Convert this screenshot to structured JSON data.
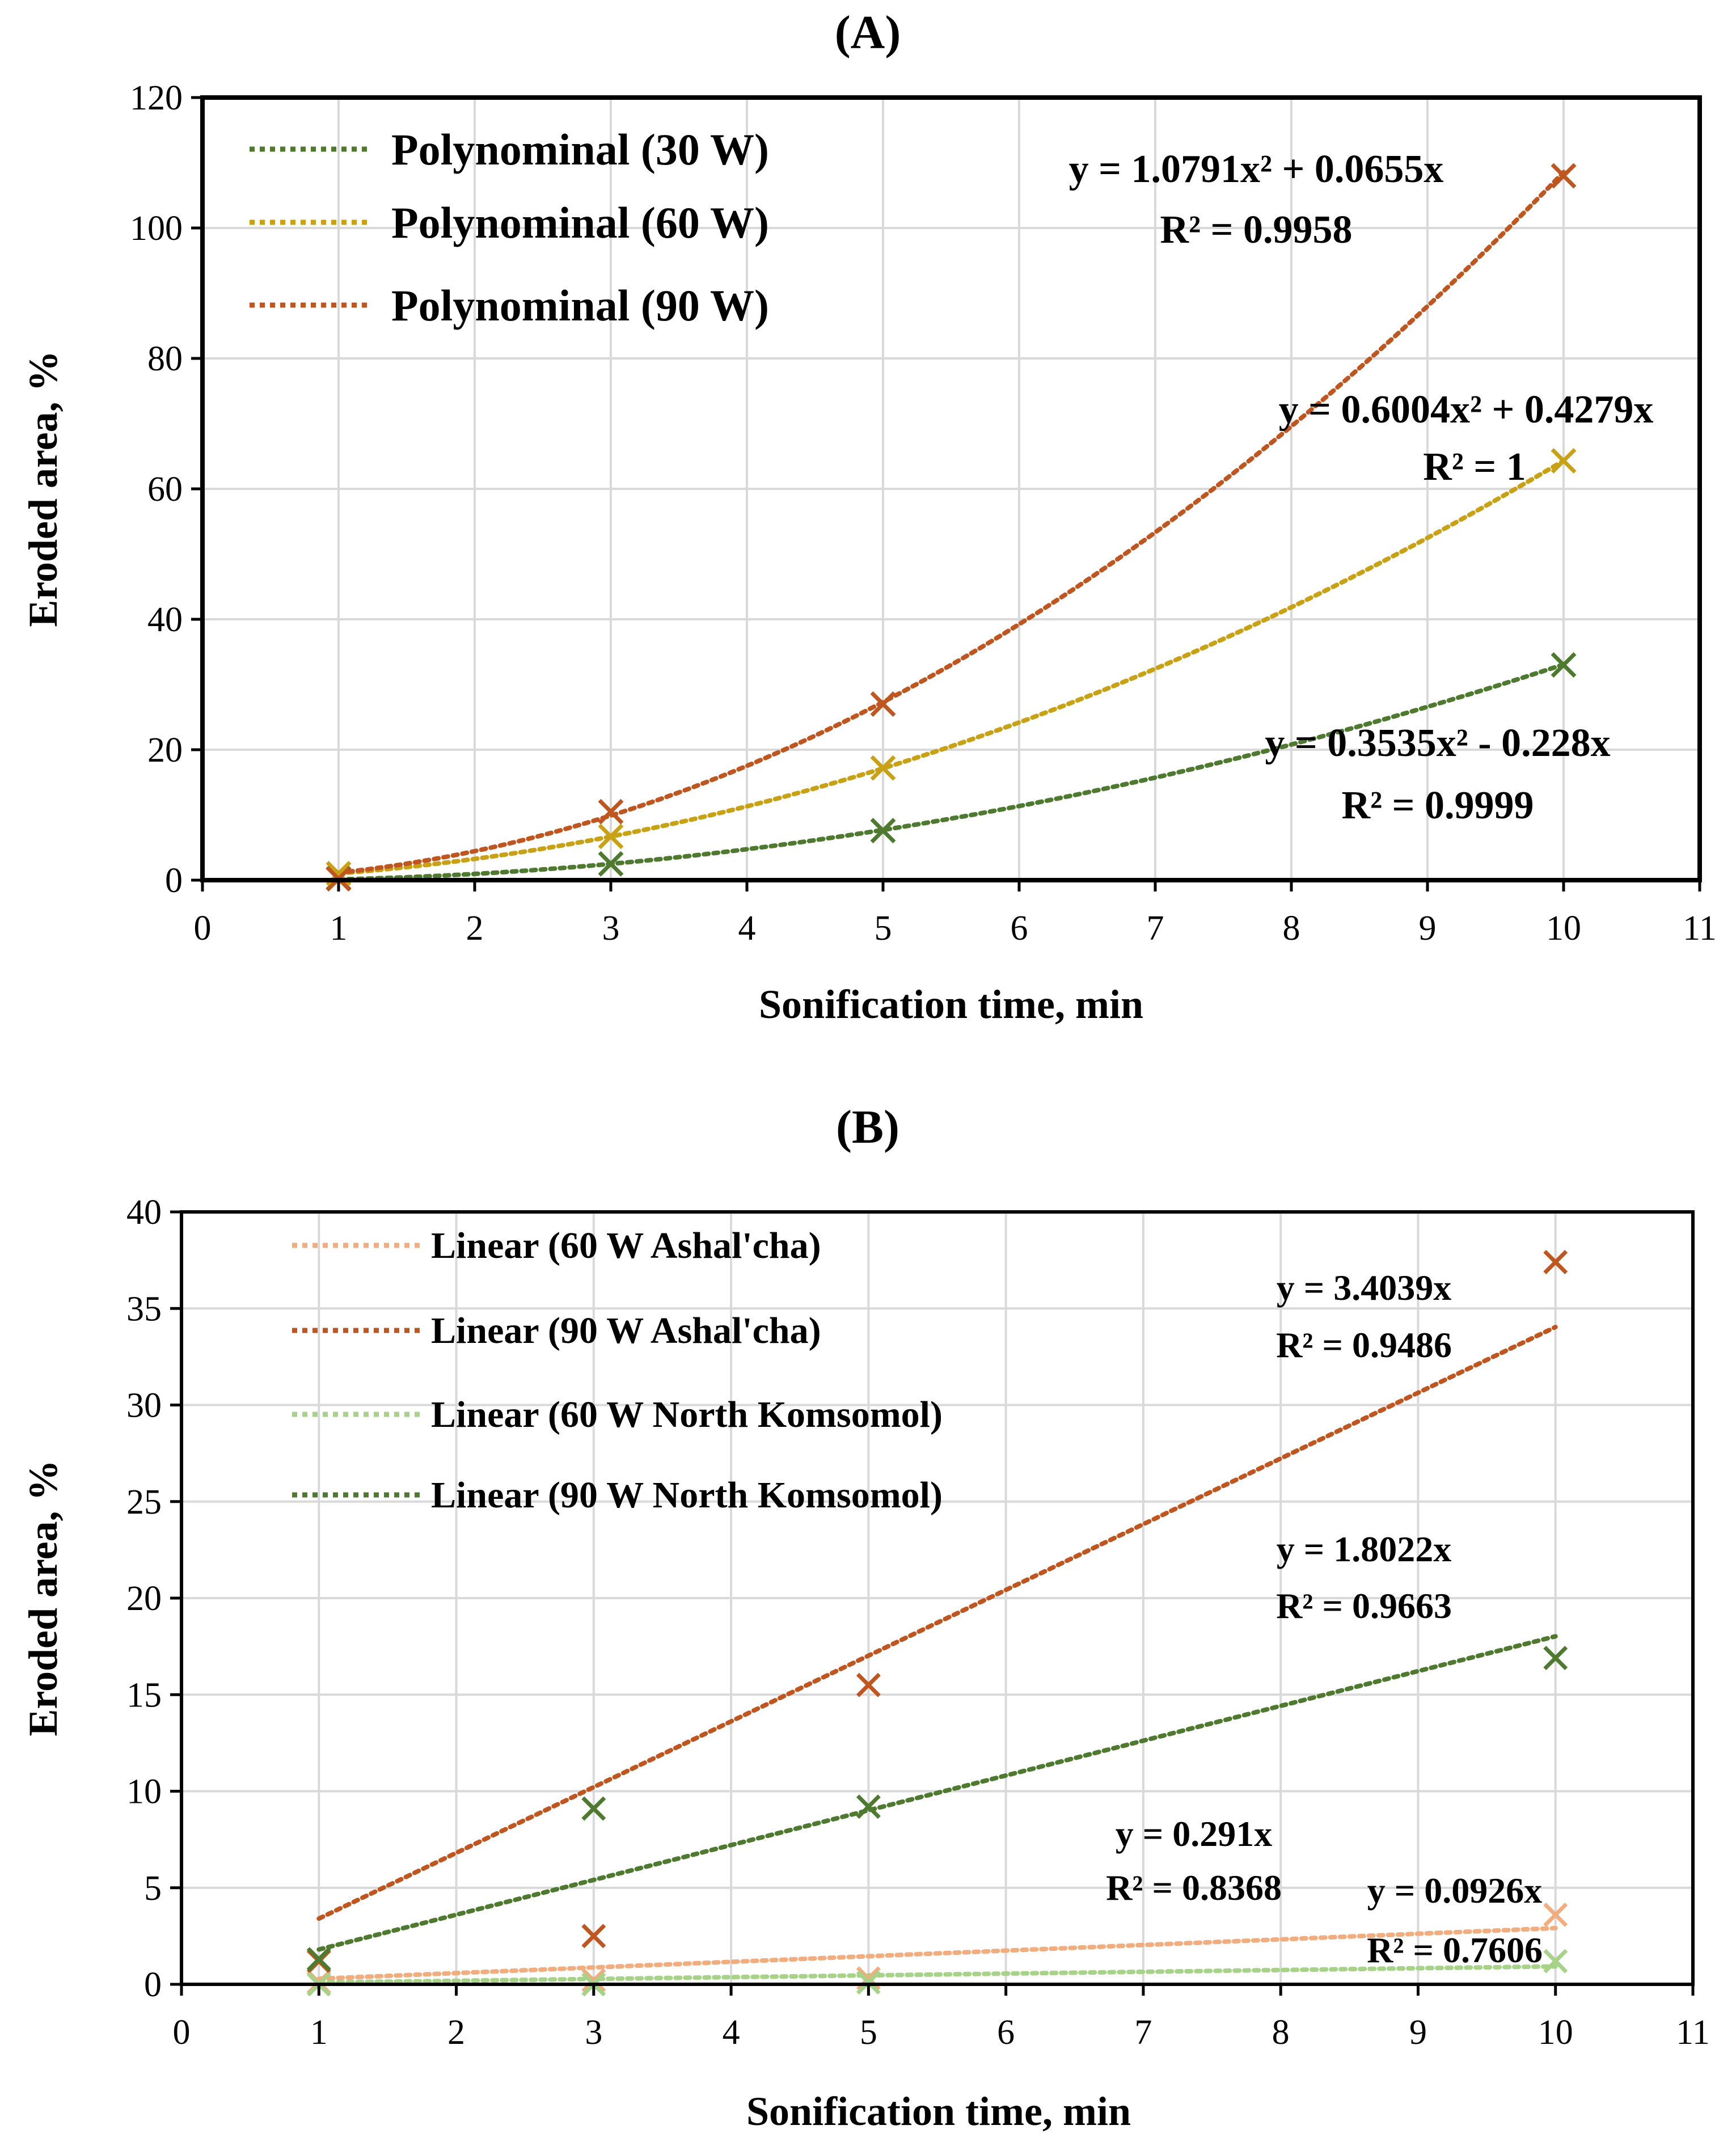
{
  "chart_data": [
    {
      "type": "scatter",
      "title": "(A)",
      "xlabel": "Sonification time, min",
      "ylabel": "Eroded area, %",
      "xlim": [
        0,
        11
      ],
      "ylim": [
        0,
        120
      ],
      "xticks": [
        "0",
        "1",
        "2",
        "3",
        "4",
        "5",
        "6",
        "7",
        "8",
        "9",
        "10",
        "11"
      ],
      "yticks": [
        "0",
        "20",
        "40",
        "60",
        "80",
        "100",
        "120"
      ],
      "grid": true,
      "legend_position": "top-left",
      "series": [
        {
          "name": "30 W",
          "legend": "Polynominal (30 W)",
          "color": "#4e7a2f",
          "x": [
            1,
            3,
            5,
            10
          ],
          "y": [
            0.3,
            2.5,
            7.6,
            33.0
          ],
          "fit": {
            "type": "poly2",
            "a": 0.3535,
            "b": -0.228
          },
          "equation": "y = 0.3535x² - 0.228x",
          "r2": "R² = 0.9999"
        },
        {
          "name": "60 W",
          "legend": "Polynominal (60 W)",
          "color": "#c9a114",
          "x": [
            1,
            3,
            5,
            10
          ],
          "y": [
            1.0,
            6.7,
            17.2,
            64.3
          ],
          "fit": {
            "type": "poly2",
            "a": 0.6004,
            "b": 0.4279
          },
          "equation": "y = 0.6004x² + 0.4279x",
          "r2": "R² = 1"
        },
        {
          "name": "90 W",
          "legend": "Polynominal (90 W)",
          "color": "#c0561f",
          "x": [
            1,
            3,
            5,
            10
          ],
          "y": [
            0.2,
            10.5,
            27.0,
            108.0
          ],
          "fit": {
            "type": "poly2",
            "a": 1.0791,
            "b": 0.0655
          },
          "equation": "y = 1.0791x² + 0.0655x",
          "r2": "R² = 0.9958"
        }
      ]
    },
    {
      "type": "scatter",
      "title": "(B)",
      "xlabel": "Sonification time, min",
      "ylabel": "Eroded area, %",
      "xlim": [
        0,
        11
      ],
      "ylim": [
        0,
        40
      ],
      "xticks": [
        "0",
        "1",
        "2",
        "3",
        "4",
        "5",
        "6",
        "7",
        "8",
        "9",
        "10",
        "11"
      ],
      "yticks": [
        "0",
        "5",
        "10",
        "15",
        "20",
        "25",
        "30",
        "35",
        "40"
      ],
      "grid": true,
      "legend_position": "top-left",
      "series": [
        {
          "name": "60 W Ashal'cha",
          "legend": "Linear (60 W Ashal'cha)",
          "color": "#f2ad7e",
          "x": [
            1,
            3,
            5,
            10
          ],
          "y": [
            0.1,
            0.2,
            0.3,
            3.6
          ],
          "fit": {
            "type": "linear",
            "a": 0.291
          },
          "equation": "y = 0.291x",
          "r2": "R² = 0.8368"
        },
        {
          "name": "90 W Ashal'cha",
          "legend": "Linear (90 W Ashal'cha)",
          "color": "#c0561f",
          "x": [
            1,
            3,
            5,
            10
          ],
          "y": [
            1.2,
            2.5,
            15.5,
            37.4
          ],
          "fit": {
            "type": "linear",
            "a": 3.4039
          },
          "equation": "y = 3.4039x",
          "r2": "R² = 0.9486"
        },
        {
          "name": "60 W North Komsomol",
          "legend": "Linear (60 W North Komsomol)",
          "color": "#a6d387",
          "x": [
            1,
            3,
            5,
            10
          ],
          "y": [
            0.0,
            0.0,
            0.1,
            1.2
          ],
          "fit": {
            "type": "linear",
            "a": 0.0926
          },
          "equation": "y = 0.0926x",
          "r2": "R² = 0.7606"
        },
        {
          "name": "90 W North Komsomol",
          "legend": "Linear (90 W North Komsomol)",
          "color": "#4e7a2f",
          "x": [
            1,
            3,
            5,
            10
          ],
          "y": [
            1.3,
            9.1,
            9.2,
            16.9
          ],
          "fit": {
            "type": "linear",
            "a": 1.8022
          },
          "equation": "y = 1.8022x",
          "r2": "R² = 0.9663"
        }
      ]
    }
  ]
}
